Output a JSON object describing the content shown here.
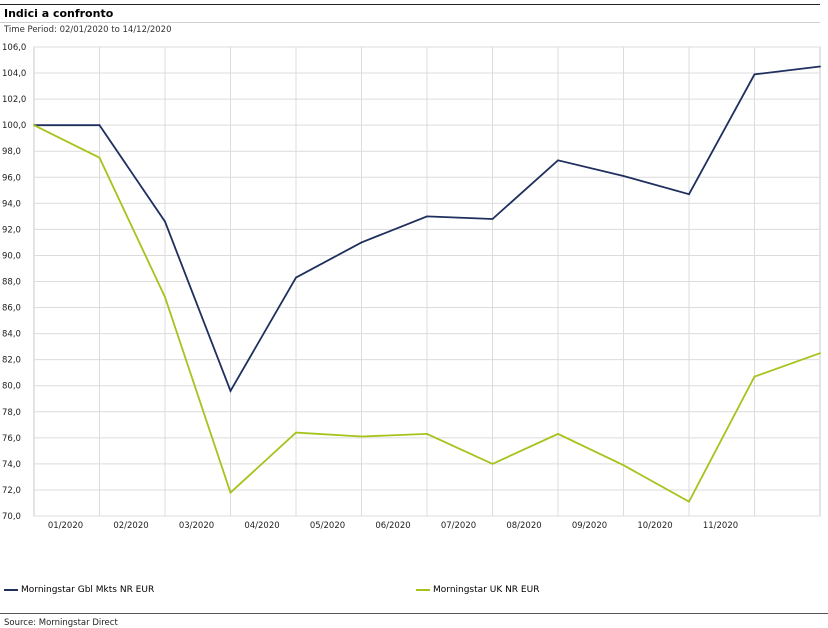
{
  "header": {
    "title": "Indici a confronto",
    "subtitle": "Time Period: 02/01/2020 to 14/12/2020"
  },
  "footer": {
    "source": "Source: Morningstar Direct"
  },
  "chart_data": {
    "type": "line",
    "title": "Indici a confronto",
    "subtitle": "Time Period: 02/01/2020 to 14/12/2020",
    "xlabel": "",
    "ylabel": "",
    "ylim": [
      70,
      106
    ],
    "y_ticks": [
      "70,0",
      "72,0",
      "74,0",
      "76,0",
      "78,0",
      "80,0",
      "82,0",
      "84,0",
      "86,0",
      "88,0",
      "90,0",
      "92,0",
      "94,0",
      "96,0",
      "98,0",
      "100,0",
      "102,0",
      "104,0",
      "106,0"
    ],
    "x_ticks": [
      "01/2020",
      "02/2020",
      "03/2020",
      "04/2020",
      "05/2020",
      "06/2020",
      "07/2020",
      "08/2020",
      "09/2020",
      "10/2020",
      "11/2020"
    ],
    "x": [
      "02/01/2020",
      "31/01/2020",
      "29/02/2020",
      "31/03/2020",
      "30/04/2020",
      "31/05/2020",
      "30/06/2020",
      "31/07/2020",
      "31/08/2020",
      "30/09/2020",
      "31/10/2020",
      "30/11/2020",
      "14/12/2020"
    ],
    "grid": true,
    "legend_position": "bottom",
    "series": [
      {
        "name": "Morningstar Gbl Mkts NR EUR",
        "color": "#1f2f5e",
        "values": [
          100.0,
          100.0,
          92.6,
          79.6,
          88.3,
          91.0,
          93.0,
          92.8,
          97.3,
          96.1,
          94.7,
          103.9,
          104.5
        ]
      },
      {
        "name": "Morningstar UK NR EUR",
        "color": "#a4c41c",
        "values": [
          100.0,
          97.5,
          86.8,
          71.8,
          76.4,
          76.1,
          76.3,
          74.0,
          76.3,
          73.9,
          71.1,
          80.7,
          82.5
        ]
      }
    ]
  }
}
